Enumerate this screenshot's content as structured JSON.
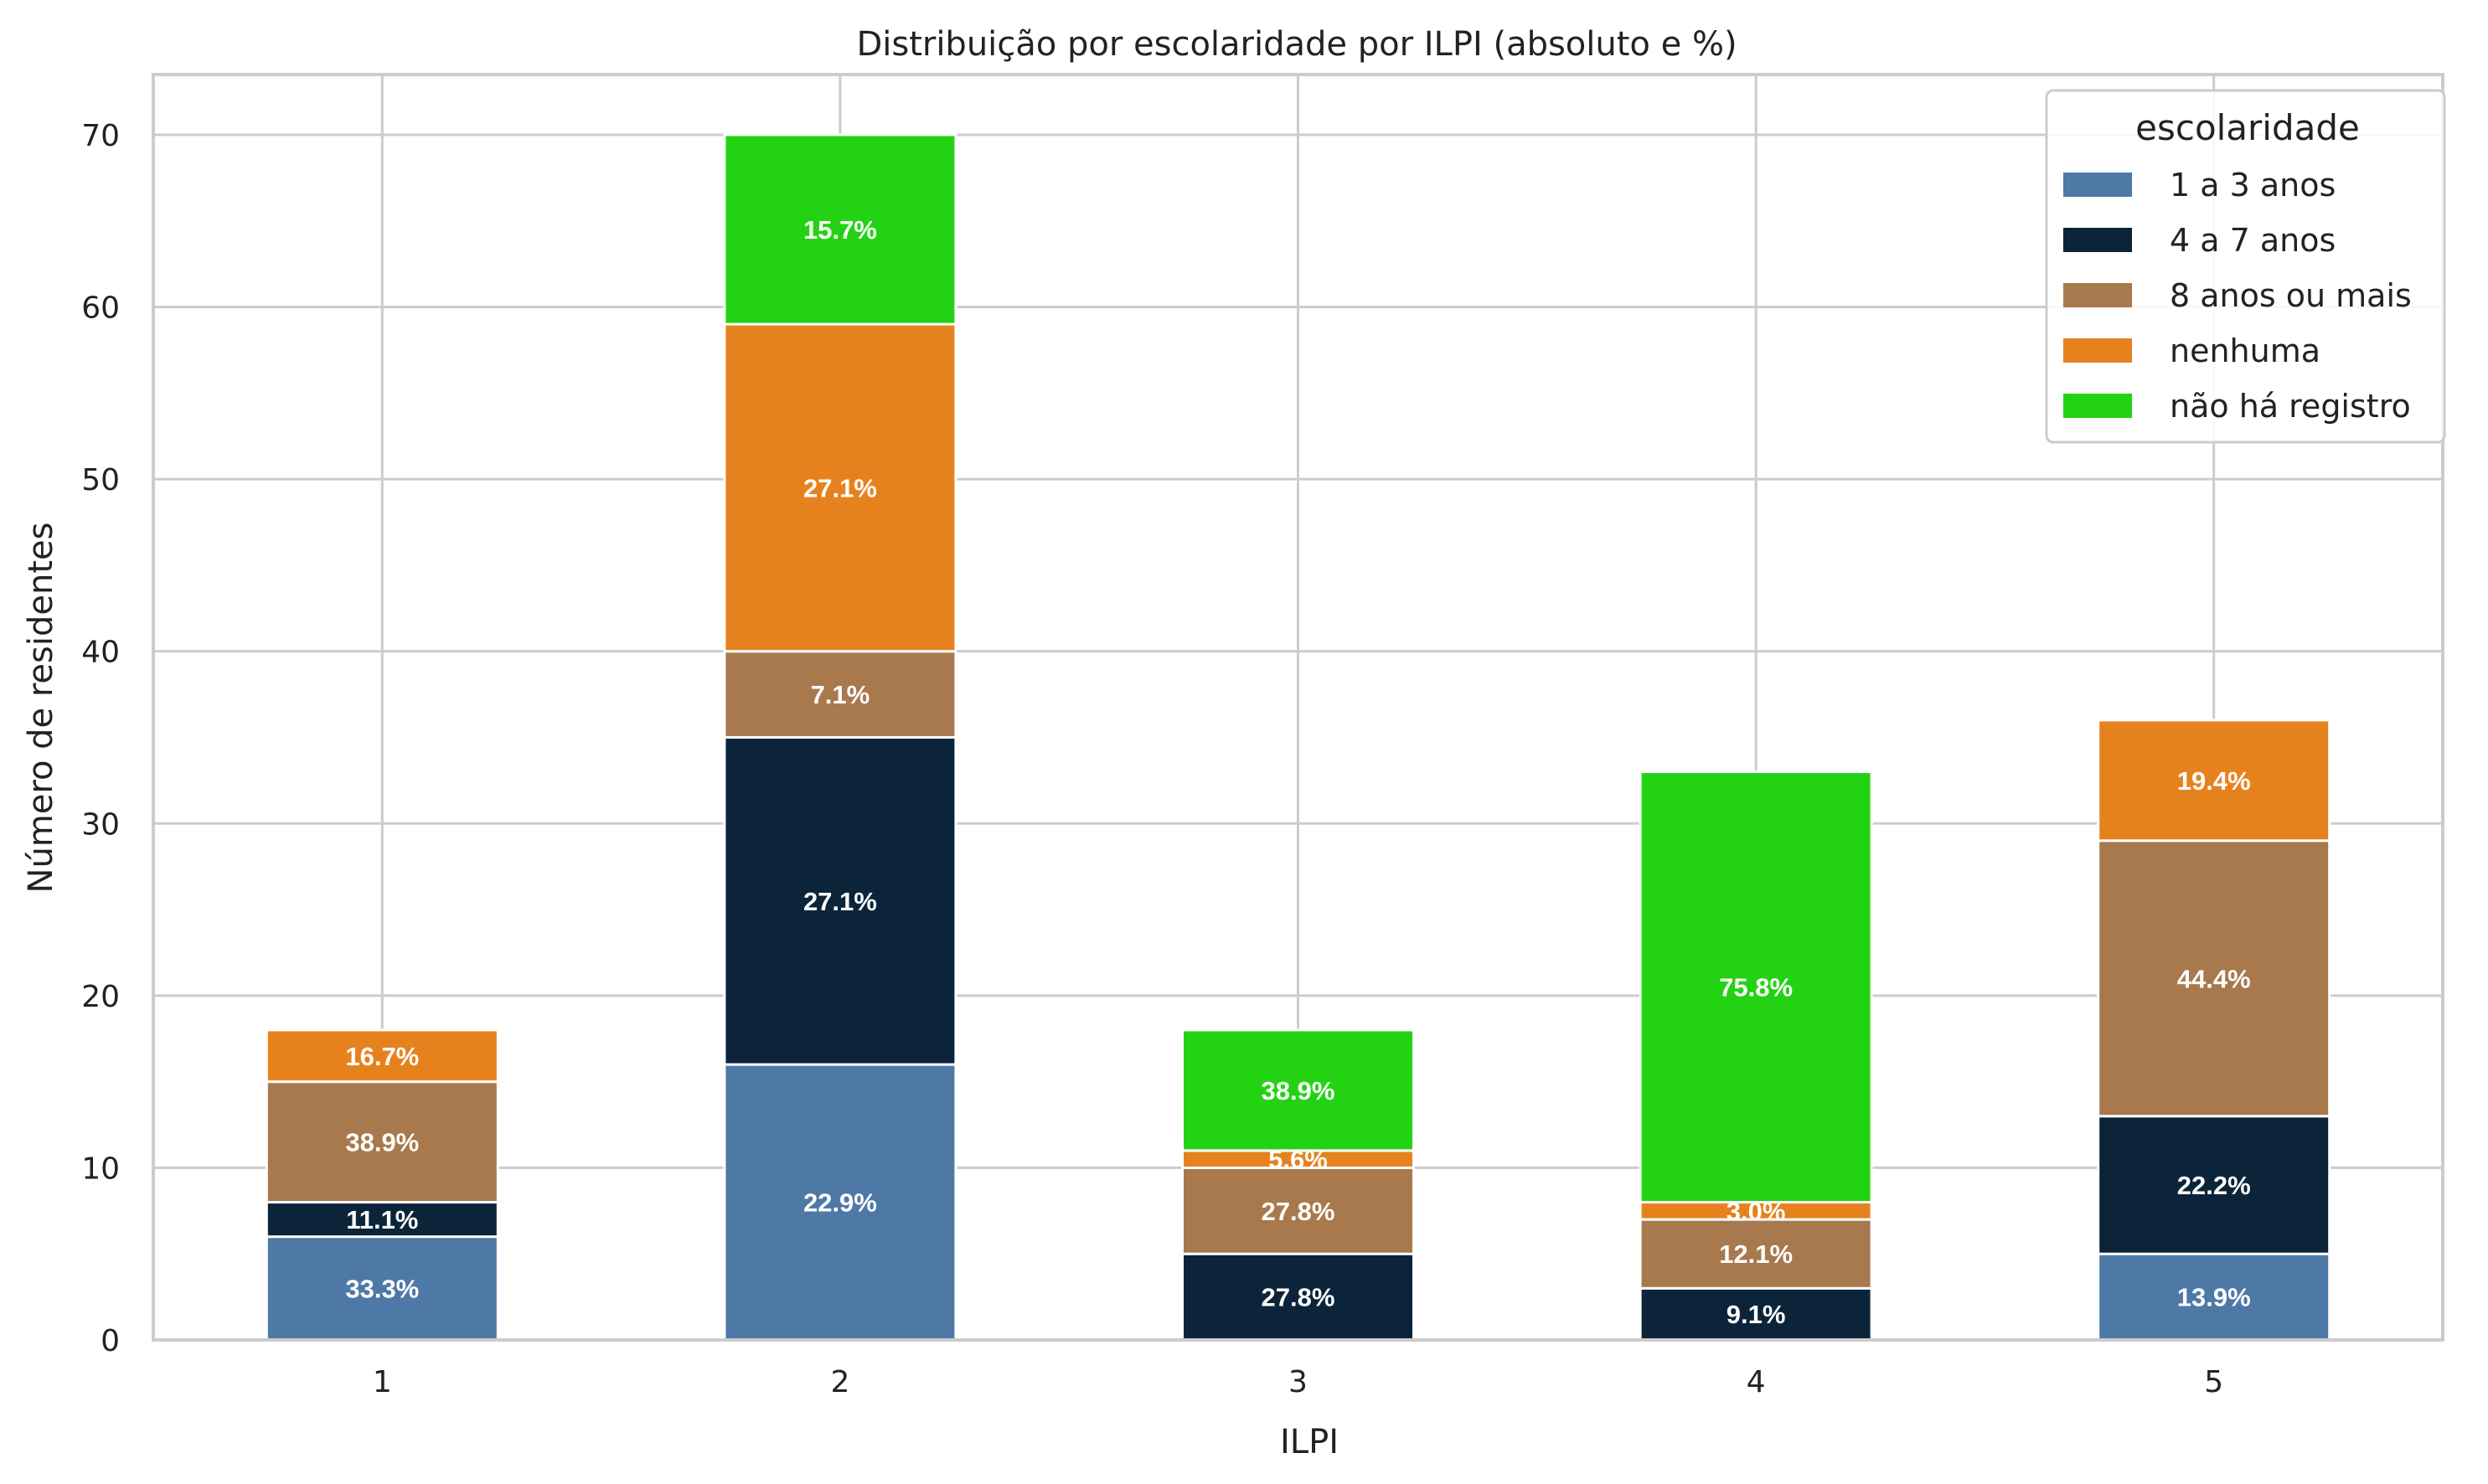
{
  "chart_data": {
    "type": "bar",
    "stacked": true,
    "title": "Distribuição por escolaridade por ILPI (absoluto e %)",
    "xlabel": "ILPI",
    "ylabel": "Número de residentes",
    "categories": [
      "1",
      "2",
      "3",
      "4",
      "5"
    ],
    "ylim": [
      0,
      73.5
    ],
    "yticks": [
      "0",
      "10",
      "20",
      "30",
      "40",
      "50",
      "60",
      "70"
    ],
    "grid": true,
    "legend": {
      "title": "escolaridade",
      "placement": "top-right"
    },
    "series": [
      {
        "name": "1 a 3 anos",
        "color": "#4e79a7",
        "values": [
          6,
          16,
          0,
          0,
          5
        ],
        "labels": [
          "33.3%",
          "22.9%",
          "",
          "",
          "13.9%"
        ]
      },
      {
        "name": "4 a 7 anos",
        "color": "#0b2439",
        "values": [
          2,
          19,
          5,
          3,
          8
        ],
        "labels": [
          "11.1%",
          "27.1%",
          "27.8%",
          "9.1%",
          "22.2%"
        ]
      },
      {
        "name": "8 anos ou mais",
        "color": "#a8794d",
        "values": [
          7,
          5,
          5,
          4,
          16
        ],
        "labels": [
          "38.9%",
          "7.1%",
          "27.8%",
          "12.1%",
          "44.4%"
        ]
      },
      {
        "name": "nenhuma",
        "color": "#e6821e",
        "values": [
          3,
          19,
          1,
          1,
          7
        ],
        "labels": [
          "16.7%",
          "27.1%",
          "5.6%",
          "3.0%",
          "19.4%"
        ]
      },
      {
        "name": "não há registro",
        "color": "#23d313",
        "values": [
          0,
          11,
          7,
          25,
          0
        ],
        "labels": [
          "",
          "15.7%",
          "38.9%",
          "75.8%",
          ""
        ]
      }
    ]
  }
}
